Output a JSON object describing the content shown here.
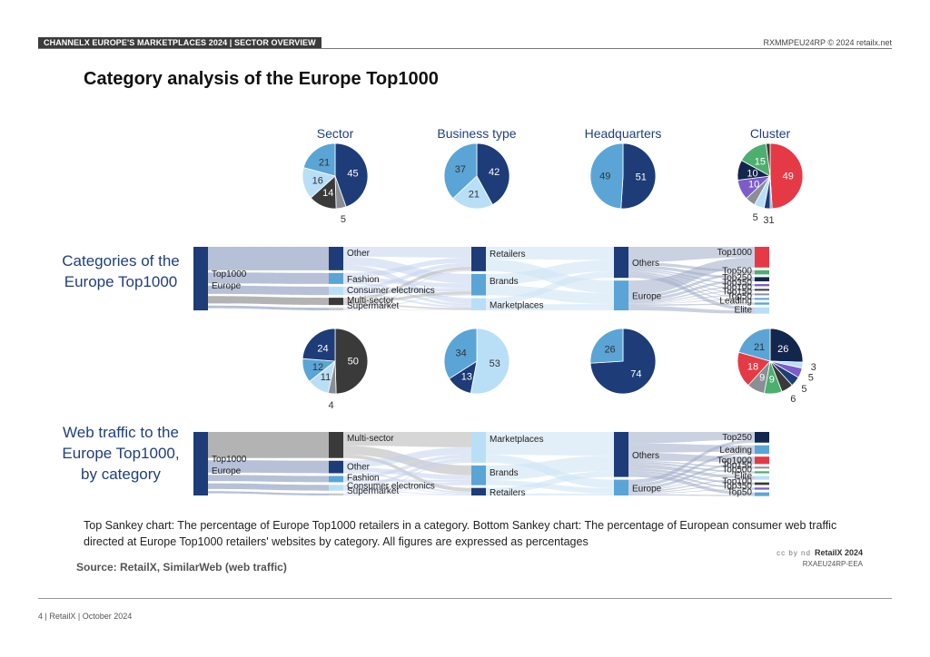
{
  "header": {
    "section": "CHANNELX EUROPE'S MARKETPLACES 2024 | SECTOR OVERVIEW",
    "ref": "RXMMPEU24RP © 2024 retailx.net"
  },
  "title": "Category analysis of the Europe Top1000",
  "row_labels": {
    "top": "Categories of the Europe Top1000",
    "bottom": "Web traffic to the Europe Top1000, by category"
  },
  "colors": {
    "navy": "#1d3c78",
    "mid_blue": "#5aa5d6",
    "light_blue": "#b9dff7",
    "dark_grey": "#3a3a3a",
    "grey": "#8a8f96",
    "red": "#e63946",
    "green": "#4caf6e",
    "purple": "#7b5cc9",
    "dark_navy": "#13264d",
    "flow": "#9eabc8"
  },
  "chart_data": [
    {
      "type": "pie",
      "title": "Sector",
      "chart_group": "top",
      "categories": [
        "Other",
        "Supermarket",
        "Multi-sector",
        "Consumer electronics",
        "Fashion"
      ],
      "values": [
        45,
        5,
        14,
        16,
        21
      ]
    },
    {
      "type": "pie",
      "title": "Business type",
      "chart_group": "top",
      "categories": [
        "Retailers",
        "Marketplaces",
        "Brands"
      ],
      "values": [
        42,
        21,
        37
      ]
    },
    {
      "type": "pie",
      "title": "Headquarters",
      "chart_group": "top",
      "categories": [
        "Others",
        "Europe"
      ],
      "values": [
        51,
        49
      ]
    },
    {
      "type": "pie",
      "title": "Cluster",
      "chart_group": "top",
      "categories": [
        "Top1000",
        "Top150",
        "Top100",
        "Top350",
        "Leading",
        "Top250",
        "Top500",
        "Elite",
        "Top50"
      ],
      "values": [
        49,
        1,
        3,
        5,
        5,
        10,
        10,
        15,
        2
      ],
      "labels_shown": [
        "49",
        "1",
        "3",
        "5",
        "",
        "10",
        "10",
        "15",
        ""
      ]
    },
    {
      "type": "pie",
      "title": "",
      "chart_group": "bottom",
      "categories": [
        "Multi-sector",
        "Supermarket",
        "Consumer electronics",
        "Fashion",
        "Other"
      ],
      "values": [
        50,
        4,
        11,
        12,
        24
      ]
    },
    {
      "type": "pie",
      "title": "",
      "chart_group": "bottom",
      "categories": [
        "Marketplaces",
        "Retailers",
        "Brands"
      ],
      "values": [
        53,
        13,
        34
      ]
    },
    {
      "type": "pie",
      "title": "",
      "chart_group": "bottom",
      "categories": [
        "Others",
        "Europe"
      ],
      "values": [
        74,
        26
      ]
    },
    {
      "type": "pie",
      "title": "",
      "chart_group": "bottom",
      "categories": [
        "Top250",
        "Top150",
        "Top500",
        "Top350",
        "Top100",
        "Elite",
        "Top50",
        "Top1000",
        "Leading"
      ],
      "values": [
        26,
        3,
        5,
        5,
        6,
        9,
        9,
        18,
        21
      ]
    },
    {
      "type": "sankey",
      "title": "Categories of the Europe Top1000",
      "stages": [
        [
          "Top1000 Europe"
        ],
        [
          "Other",
          "Fashion",
          "Consumer electronics",
          "Multi-sector",
          "Supermarket"
        ],
        [
          "Retailers",
          "Brands",
          "Marketplaces"
        ],
        [
          "Others",
          "Europe"
        ],
        [
          "Top1000",
          "Top500",
          "Top250",
          "Top350",
          "Top100",
          "Top150",
          "Top50",
          "Leading",
          "Elite"
        ]
      ]
    },
    {
      "type": "sankey",
      "title": "Web traffic to the Europe Top1000, by category",
      "stages": [
        [
          "Top1000 Europe"
        ],
        [
          "Multi-sector",
          "Other",
          "Fashion",
          "Consumer electronics",
          "Supermarket"
        ],
        [
          "Marketplaces",
          "Brands",
          "Retailers"
        ],
        [
          "Others",
          "Europe"
        ],
        [
          "Top250",
          "Leading",
          "Top1000",
          "Top150",
          "Top500",
          "Elite",
          "Top100",
          "Top350",
          "Top50"
        ]
      ]
    }
  ],
  "sankey_labels": {
    "top": {
      "source": [
        "Top1000",
        "Europe"
      ],
      "sector": [
        "Other",
        "Fashion",
        "Consumer electronics",
        "Multi-sector",
        "Supermarket"
      ],
      "business": [
        "Retailers",
        "Brands",
        "Marketplaces"
      ],
      "hq": [
        "Others",
        "Europe"
      ],
      "cluster": [
        "Top1000",
        "Top500",
        "Top250",
        "Top350",
        "Top100",
        "Top150",
        "Top50",
        "Leading",
        "Elite"
      ]
    },
    "bottom": {
      "source": [
        "Top1000",
        "Europe"
      ],
      "sector": [
        "Multi-sector",
        "Other",
        "Fashion",
        "Consumer electronics",
        "Supermarket"
      ],
      "business": [
        "Marketplaces",
        "Brands",
        "Retailers"
      ],
      "hq": [
        "Others",
        "Europe"
      ],
      "cluster": [
        "Top250",
        "Leading",
        "Top1000",
        "Top150",
        "Top500",
        "Elite",
        "Top100",
        "Top350",
        "Top50"
      ]
    }
  },
  "caption": "Top Sankey chart: The percentage of Europe Top1000 retailers in a category. Bottom Sankey chart: The percentage of European consumer web traffic directed at Europe Top1000 retailers' websites by category. All figures are expressed as percentages",
  "source": "Source: RetailX, SimilarWeb (web traffic)",
  "brand": {
    "name": "RetailX 2024",
    "code": "RXAEU24RP-EEA",
    "license": "cc by nd"
  },
  "footer": "4 | RetailX | October 2024"
}
